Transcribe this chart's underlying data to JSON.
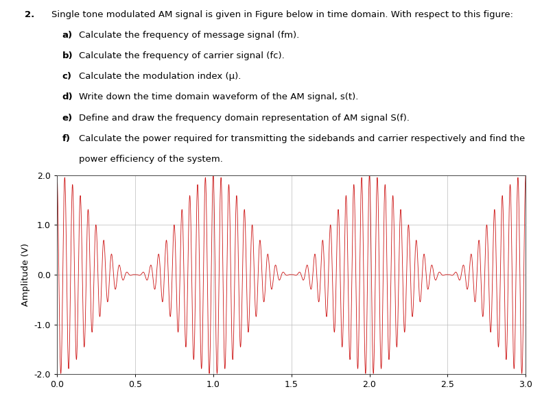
{
  "title": "",
  "xlabel": "",
  "ylabel": "Amplitude (V)",
  "xlim": [
    0.0,
    3.0
  ],
  "ylim": [
    -2.0,
    2.0
  ],
  "xticks": [
    0.0,
    0.5,
    1.0,
    1.5,
    2.0,
    2.5,
    3.0
  ],
  "yticks": [
    -2.0,
    -1.0,
    0.0,
    1.0,
    2.0
  ],
  "Ac": 1.0,
  "Am": 1.0,
  "fc": 20.0,
  "fm": 1.0,
  "num_points": 20000,
  "t_start": 0.0,
  "t_end": 3.0,
  "line_color": "#cc1111",
  "line_width": 0.6,
  "grid_color": "#bbbbbb",
  "grid_linewidth": 0.5,
  "bg_color": "#ffffff",
  "fig_width": 7.9,
  "fig_height": 5.81,
  "dpi": 100
}
